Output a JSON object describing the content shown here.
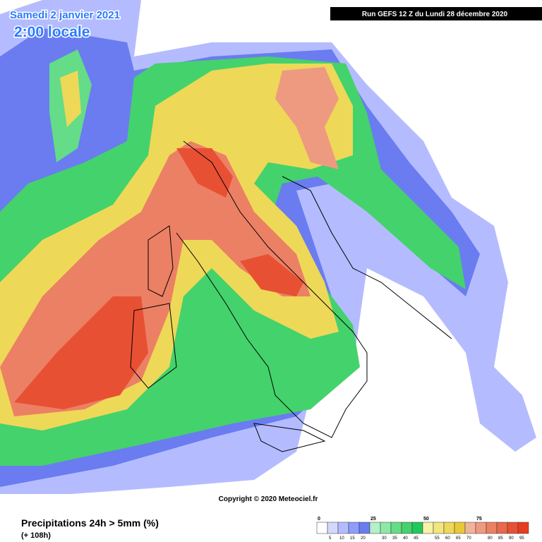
{
  "header": {
    "date": "Samedi 2 janvier 2021",
    "time": "2:00 locale",
    "run": "Run GEFS 12 Z du Lundi 28 décembre 2020"
  },
  "copyright": "Copyright © 2020 Meteociel.fr",
  "footer": {
    "title": "Precipitations 24h > 5mm (%)",
    "lead": "(+ 108h)"
  },
  "legend": {
    "colors": [
      "#ffffff",
      "#d4d8ff",
      "#b4bcff",
      "#8e9cff",
      "#6a7cf0",
      "#b4f0c8",
      "#8ce8a8",
      "#64dc88",
      "#44d26c",
      "#24c858",
      "#f6f2a8",
      "#f2e680",
      "#eed858",
      "#eac838",
      "#f2b498",
      "#ee9a80",
      "#ec8064",
      "#ea684c",
      "#e85034",
      "#e63c20"
    ],
    "top_labels": [
      "0",
      "25",
      "50",
      "75"
    ],
    "bottom_labels": [
      "5",
      "10",
      "15",
      "20",
      "30",
      "35",
      "40",
      "45",
      "55",
      "60",
      "65",
      "70",
      "80",
      "85",
      "90",
      "95"
    ]
  }
}
